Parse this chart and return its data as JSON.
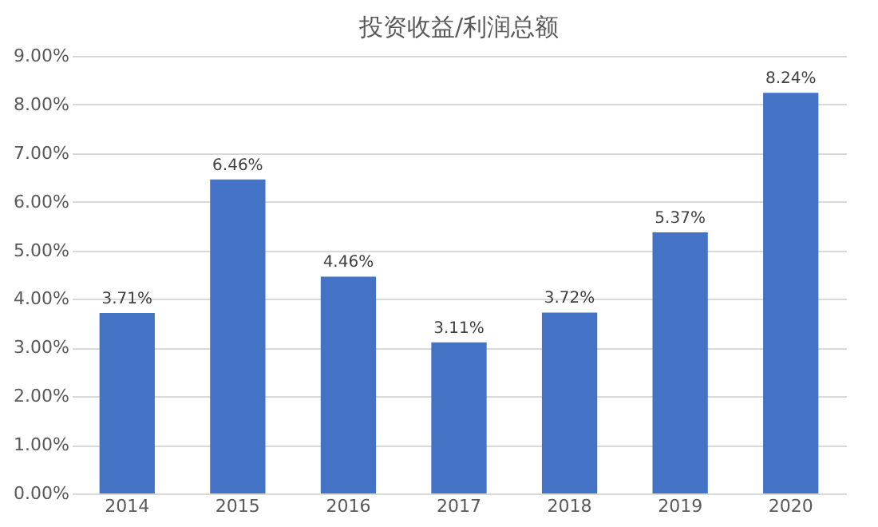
{
  "chart_data": {
    "type": "bar",
    "title": "投资收益/利润总额",
    "categories": [
      "2014",
      "2015",
      "2016",
      "2017",
      "2018",
      "2019",
      "2020"
    ],
    "values": [
      3.71,
      6.46,
      4.46,
      3.11,
      3.72,
      5.37,
      8.24
    ],
    "value_labels": [
      "3.71%",
      "6.46%",
      "4.46%",
      "3.11%",
      "3.72%",
      "5.37%",
      "8.24%"
    ],
    "color": "#4472c4",
    "ylim": [
      0,
      9
    ],
    "yticks": [
      {
        "value": 0,
        "label": "0.00%"
      },
      {
        "value": 1,
        "label": "1.00%"
      },
      {
        "value": 2,
        "label": "2.00%"
      },
      {
        "value": 3,
        "label": "3.00%"
      },
      {
        "value": 4,
        "label": "4.00%"
      },
      {
        "value": 5,
        "label": "5.00%"
      },
      {
        "value": 6,
        "label": "6.00%"
      },
      {
        "value": 7,
        "label": "7.00%"
      },
      {
        "value": 8,
        "label": "8.00%"
      },
      {
        "value": 9,
        "label": "9.00%"
      }
    ],
    "grid": "y"
  }
}
